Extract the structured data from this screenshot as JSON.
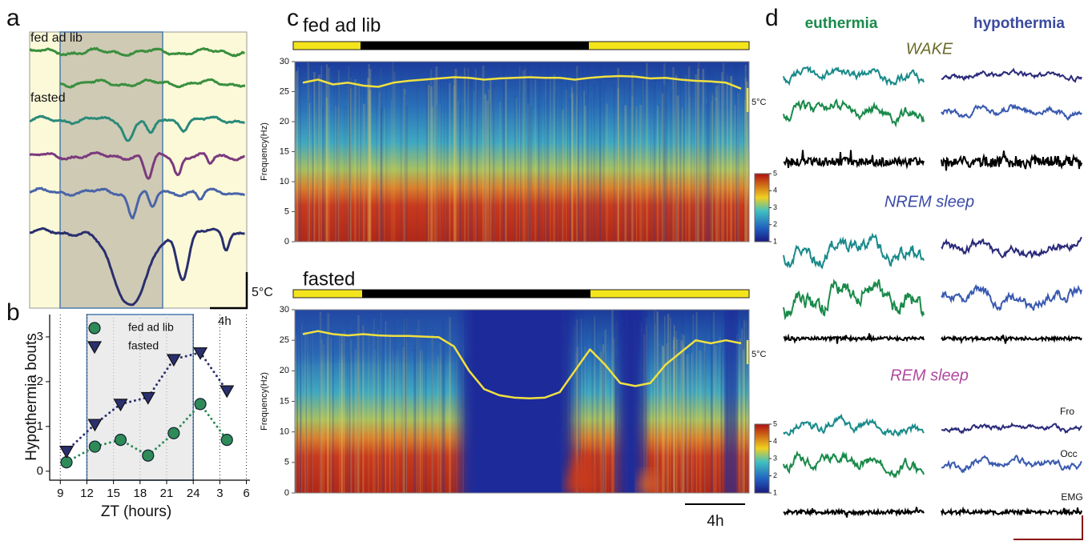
{
  "panel_labels": [
    "a",
    "b",
    "c",
    "d"
  ],
  "panel_a": {
    "fed_label": "fed ad lib",
    "fasted_label": "fasted",
    "scale_y": "5°C",
    "scale_x": "4h"
  },
  "chart_data": [
    {
      "type": "scatter",
      "xlabel": "ZT (hours)",
      "ylabel": "Hypothermia bouts",
      "xlim": [
        7.8,
        30.4
      ],
      "ylim": [
        -0.2,
        3.5
      ],
      "xticks": [
        9,
        12,
        15,
        18,
        21,
        24,
        {
          "value": 27,
          "label": "3"
        },
        {
          "value": 30,
          "label": "6"
        }
      ],
      "yticks": [
        0,
        1,
        2,
        3
      ],
      "grid": true,
      "series": [
        {
          "name": "fed ad lib",
          "color": "#2e8b57",
          "marker": "circle",
          "x": [
            9.7,
            12.9,
            15.8,
            18.9,
            21.8,
            24.8,
            27.8
          ],
          "values": [
            0.2,
            0.55,
            0.7,
            0.35,
            0.85,
            1.5,
            0.7
          ]
        },
        {
          "name": "fasted",
          "color": "#2a2f6e",
          "marker": "triangle",
          "x": [
            9.7,
            12.9,
            15.8,
            18.9,
            21.8,
            24.8,
            27.8
          ],
          "values": [
            0.45,
            1.05,
            1.5,
            1.65,
            2.5,
            2.65,
            1.8
          ]
        }
      ]
    },
    {
      "type": "spectrogram",
      "title": "fed ad lib",
      "ylabel": "Frequency(Hz)",
      "ylim": [
        0,
        30
      ],
      "yticks": [
        0,
        5,
        10,
        15,
        20,
        25,
        30
      ],
      "colorbar_lim": [
        1,
        5
      ],
      "colorbar_ticks": [
        1,
        2,
        3,
        4,
        5
      ],
      "temp_label": "5°C",
      "temperature": {
        "color": "#f0e040",
        "values": [
          26.5,
          27,
          26.2,
          26.5,
          26,
          25.8,
          26.5,
          26.8,
          27,
          27.2,
          27.4,
          27.3,
          27,
          27.2,
          27.3,
          27.4,
          27.3,
          27.3,
          27,
          27.3,
          27.5,
          27.6,
          27.5,
          27.2,
          27.3,
          27,
          26.8,
          26.7,
          26.5,
          25.5
        ]
      }
    },
    {
      "type": "spectrogram",
      "title": "fasted",
      "ylabel": "Frequency(Hz)",
      "ylim": [
        0,
        30
      ],
      "yticks": [
        0,
        5,
        10,
        15,
        20,
        25,
        30
      ],
      "colorbar_lim": [
        1,
        5
      ],
      "colorbar_ticks": [
        1,
        2,
        3,
        4,
        5
      ],
      "temp_label": "5°C",
      "scale_x": "4h",
      "temperature": {
        "color": "#f0e040",
        "values": [
          26,
          26.5,
          26,
          25.8,
          26,
          25.8,
          25.7,
          25.7,
          25.6,
          25.5,
          24,
          20,
          17,
          16,
          15.6,
          15.5,
          15.6,
          16.5,
          20,
          23.5,
          21,
          18,
          17.5,
          18,
          21,
          23,
          25,
          24.5,
          25,
          24.5
        ]
      }
    }
  ],
  "panel_d": {
    "columns": [
      "euthermia",
      "hypothermia"
    ],
    "states": [
      "WAKE",
      "NREM sleep",
      "REM sleep"
    ],
    "channels": [
      "Fro",
      "Occ",
      "EMG"
    ]
  }
}
